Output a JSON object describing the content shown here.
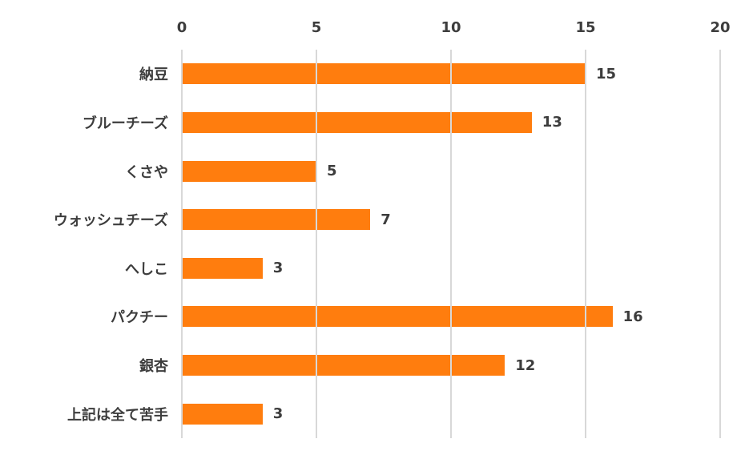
{
  "chart_data": {
    "type": "bar",
    "orientation": "horizontal",
    "title": "",
    "xlabel": "",
    "ylabel": "",
    "categories": [
      "納豆",
      "ブルーチーズ",
      "くさや",
      "ウォッシュチーズ",
      "へしこ",
      "パクチー",
      "銀杏",
      "上記は全て苦手"
    ],
    "values": [
      15,
      13,
      5,
      7,
      3,
      16,
      12,
      3
    ],
    "value_labels": [
      "15",
      "13",
      "5",
      "7",
      "3",
      "16",
      "12",
      "3"
    ],
    "xlim": [
      0,
      20
    ],
    "x_ticks": [
      "0",
      "5",
      "10",
      "15",
      "20"
    ],
    "x_tick_values": [
      0,
      5,
      10,
      15,
      20
    ],
    "x_axis_position": "top",
    "grid": "vertical gridlines at each x tick, drawn over the bars",
    "legend": "none",
    "colors": {
      "bar": "#ff7d0e",
      "text": "#3d3d3d",
      "gridline": "#d8d8d8",
      "background": "#ffffff"
    }
  }
}
